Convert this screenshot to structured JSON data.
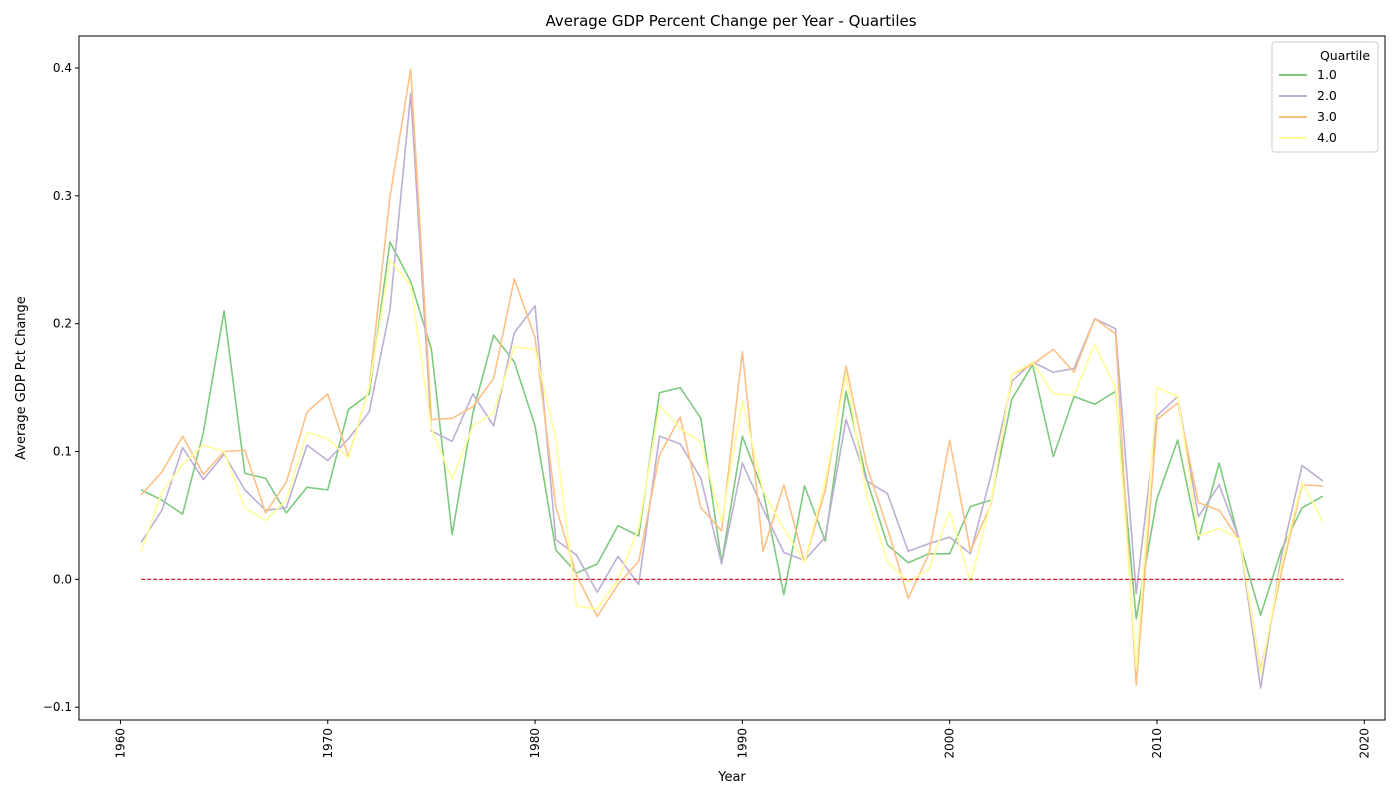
{
  "chart_data": {
    "type": "line",
    "title": "Average GDP Percent Change per Year - Quartiles",
    "xlabel": "Year",
    "ylabel": "Average GDP Pct Change",
    "xlim": [
      1958,
      2021
    ],
    "ylim": [
      -0.11,
      0.425
    ],
    "xticks": [
      1960,
      1970,
      1980,
      1990,
      2000,
      2010,
      2020
    ],
    "yticks": [
      -0.1,
      0.0,
      0.1,
      0.2,
      0.3,
      0.4
    ],
    "ytick_labels": [
      "−0.1",
      "0.0",
      "0.1",
      "0.2",
      "0.3",
      "0.4"
    ],
    "grid": false,
    "legend": {
      "title": "Quartile",
      "position": "top-right"
    },
    "reference_line": {
      "y": 0.0,
      "x_range": [
        1961,
        2019
      ],
      "color": "#d62728",
      "style": "dashed"
    },
    "x": [
      1961,
      1962,
      1963,
      1964,
      1965,
      1966,
      1967,
      1968,
      1969,
      1970,
      1971,
      1972,
      1973,
      1974,
      1975,
      1976,
      1977,
      1978,
      1979,
      1980,
      1981,
      1982,
      1983,
      1984,
      1985,
      1986,
      1987,
      1988,
      1989,
      1990,
      1991,
      1992,
      1993,
      1994,
      1995,
      1996,
      1997,
      1998,
      1999,
      2000,
      2001,
      2002,
      2003,
      2004,
      2005,
      2006,
      2007,
      2008,
      2009,
      2010,
      2011,
      2012,
      2013,
      2014,
      2015,
      2016,
      2017,
      2018
    ],
    "series": [
      {
        "name": "1.0",
        "color": "#7fc97f",
        "values": [
          0.07,
          0.062,
          0.051,
          0.115,
          0.21,
          0.083,
          0.079,
          0.052,
          0.072,
          0.07,
          0.133,
          0.145,
          0.264,
          0.233,
          0.18,
          0.035,
          0.13,
          0.191,
          0.17,
          0.12,
          0.023,
          0.005,
          0.012,
          0.042,
          0.034,
          0.146,
          0.15,
          0.126,
          0.013,
          0.112,
          0.069,
          -0.012,
          0.073,
          0.03,
          0.147,
          0.078,
          0.027,
          0.013,
          0.02,
          0.02,
          0.057,
          0.062,
          0.141,
          0.168,
          0.096,
          0.143,
          0.137,
          0.147,
          -0.031,
          0.063,
          0.109,
          0.031,
          0.091,
          0.028,
          -0.028,
          0.023,
          0.056,
          0.065
        ]
      },
      {
        "name": "2.0",
        "color": "#beaed4",
        "values": [
          0.029,
          0.054,
          0.103,
          0.078,
          0.098,
          0.07,
          0.054,
          0.056,
          0.105,
          0.093,
          0.11,
          0.131,
          0.211,
          0.38,
          0.116,
          0.108,
          0.145,
          0.12,
          0.193,
          0.214,
          0.031,
          0.019,
          -0.01,
          0.018,
          -0.004,
          0.112,
          0.106,
          0.079,
          0.012,
          0.091,
          0.055,
          0.021,
          0.015,
          0.033,
          0.125,
          0.077,
          0.067,
          0.022,
          0.028,
          0.033,
          0.02,
          0.082,
          0.155,
          0.17,
          0.162,
          0.165,
          0.204,
          0.196,
          -0.011,
          0.128,
          0.143,
          0.049,
          0.074,
          0.03,
          -0.085,
          0.018,
          0.089,
          0.077
        ]
      },
      {
        "name": "3.0",
        "color": "#fdc086",
        "values": [
          0.066,
          0.084,
          0.112,
          0.082,
          0.1,
          0.101,
          0.052,
          0.076,
          0.131,
          0.145,
          0.096,
          0.15,
          0.299,
          0.399,
          0.125,
          0.126,
          0.135,
          0.157,
          0.235,
          0.189,
          0.057,
          0.003,
          -0.029,
          -0.004,
          0.014,
          0.097,
          0.127,
          0.056,
          0.038,
          0.178,
          0.022,
          0.074,
          0.013,
          0.07,
          0.167,
          0.089,
          0.04,
          -0.015,
          0.02,
          0.109,
          0.022,
          0.059,
          0.16,
          0.168,
          0.18,
          0.162,
          0.204,
          0.192,
          -0.083,
          0.125,
          0.138,
          0.06,
          0.054,
          0.03,
          -0.071,
          0.005,
          0.074,
          0.073
        ]
      },
      {
        "name": "4.0",
        "color": "#ffff99",
        "values": [
          0.022,
          0.068,
          0.09,
          0.105,
          0.1,
          0.056,
          0.046,
          0.062,
          0.115,
          0.11,
          0.095,
          0.15,
          0.25,
          0.23,
          0.118,
          0.078,
          0.12,
          0.13,
          0.182,
          0.18,
          0.11,
          -0.021,
          -0.023,
          0.0,
          0.04,
          0.136,
          0.118,
          0.107,
          0.045,
          0.14,
          0.069,
          0.04,
          0.013,
          0.077,
          0.16,
          0.065,
          0.014,
          -0.002,
          0.008,
          0.053,
          -0.002,
          0.061,
          0.16,
          0.17,
          0.145,
          0.144,
          0.184,
          0.15,
          -0.069,
          0.15,
          0.143,
          0.034,
          0.04,
          0.031,
          -0.074,
          0.012,
          0.076,
          0.045
        ]
      }
    ]
  }
}
